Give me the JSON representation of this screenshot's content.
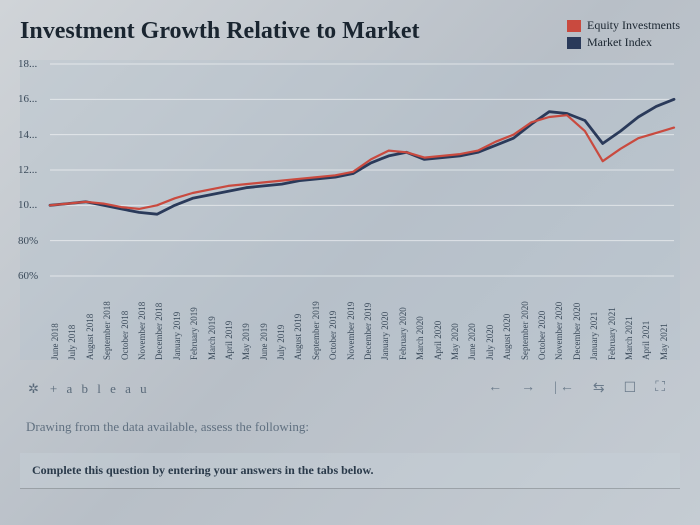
{
  "title": "Investment Growth Relative to Market",
  "legend": {
    "series1": {
      "label": "Equity Investments",
      "color": "#c94a3f"
    },
    "series2": {
      "label": "Market Index",
      "color": "#2a3a5a"
    }
  },
  "chart": {
    "type": "line",
    "background_color": "rgba(180,195,205,0.35)",
    "grid_color": "rgba(255,255,255,0.55)",
    "text_color": "#3a4a5a",
    "title_fontsize": 24,
    "label_fontsize": 11,
    "xlabel_fontsize": 9,
    "line_width_equity": 2.2,
    "line_width_market": 2.8,
    "ylim": [
      60,
      180
    ],
    "yticks": [
      {
        "v": 180,
        "label": "18..."
      },
      {
        "v": 160,
        "label": "16..."
      },
      {
        "v": 140,
        "label": "14..."
      },
      {
        "v": 120,
        "label": "12..."
      },
      {
        "v": 100,
        "label": "10..."
      },
      {
        "v": 80,
        "label": "80%"
      },
      {
        "v": 60,
        "label": "60%"
      }
    ],
    "categories": [
      "June 2018",
      "July 2018",
      "August 2018",
      "September 2018",
      "October 2018",
      "November 2018",
      "December 2018",
      "January 2019",
      "February 2019",
      "March 2019",
      "April 2019",
      "May 2019",
      "June 2019",
      "July 2019",
      "August 2019",
      "September 2019",
      "October 2019",
      "November 2019",
      "December 2019",
      "January 2020",
      "February 2020",
      "March 2020",
      "April 2020",
      "May 2020",
      "June 2020",
      "July 2020",
      "August 2020",
      "September 2020",
      "October 2020",
      "November 2020",
      "December 2020",
      "January 2021",
      "February 2021",
      "March 2021",
      "April 2021",
      "May 2021"
    ],
    "series": {
      "equity": {
        "color": "#c94a3f",
        "values": [
          100,
          101,
          102,
          101,
          99,
          98,
          100,
          104,
          107,
          109,
          111,
          112,
          113,
          114,
          115,
          116,
          117,
          119,
          126,
          131,
          130,
          127,
          128,
          129,
          131,
          136,
          140,
          147,
          150,
          151,
          142,
          125,
          132,
          138,
          141,
          144
        ]
      },
      "market": {
        "color": "#2a3a5a",
        "values": [
          100,
          101,
          102,
          100,
          98,
          96,
          95,
          100,
          104,
          106,
          108,
          110,
          111,
          112,
          114,
          115,
          116,
          118,
          124,
          128,
          130,
          126,
          127,
          128,
          130,
          134,
          138,
          146,
          153,
          152,
          148,
          135,
          142,
          150,
          156,
          160
        ]
      }
    }
  },
  "brand": "+ a b l e a u",
  "caption": "Drawing from the data available, assess the following:",
  "instruction": "Complete this question by entering your answers in the tabs below."
}
